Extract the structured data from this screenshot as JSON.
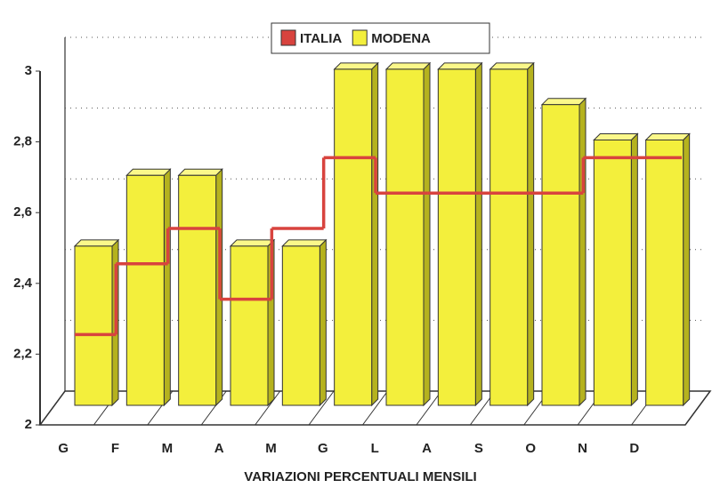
{
  "chart_data": {
    "type": "bar",
    "x_label": "VARIAZIONI PERCENTUALI MENSILI",
    "categories": [
      "G",
      "F",
      "M",
      "A",
      "M",
      "G",
      "L",
      "A",
      "S",
      "O",
      "N",
      "D"
    ],
    "series": [
      {
        "name": "ITALIA",
        "type": "step",
        "color": "#d8433e",
        "values": [
          2.2,
          2.4,
          2.5,
          2.3,
          2.5,
          2.7,
          2.6,
          2.6,
          2.6,
          2.6,
          2.7,
          2.7
        ]
      },
      {
        "name": "MODENA",
        "type": "bar",
        "color": "#f3ef3c",
        "values": [
          2.45,
          2.65,
          2.65,
          2.45,
          2.45,
          2.95,
          2.95,
          2.95,
          2.95,
          2.85,
          2.75,
          2.75
        ]
      }
    ],
    "ylim": [
      2,
      3
    ],
    "yticks": [
      2,
      {
        "value": 2.2,
        "label": "2,2"
      },
      {
        "value": 2.4,
        "label": "2,4"
      },
      {
        "value": 2.6,
        "label": "2,6"
      },
      {
        "value": 2.8,
        "label": "2,8"
      },
      3
    ],
    "grid": true,
    "legend": "top"
  }
}
